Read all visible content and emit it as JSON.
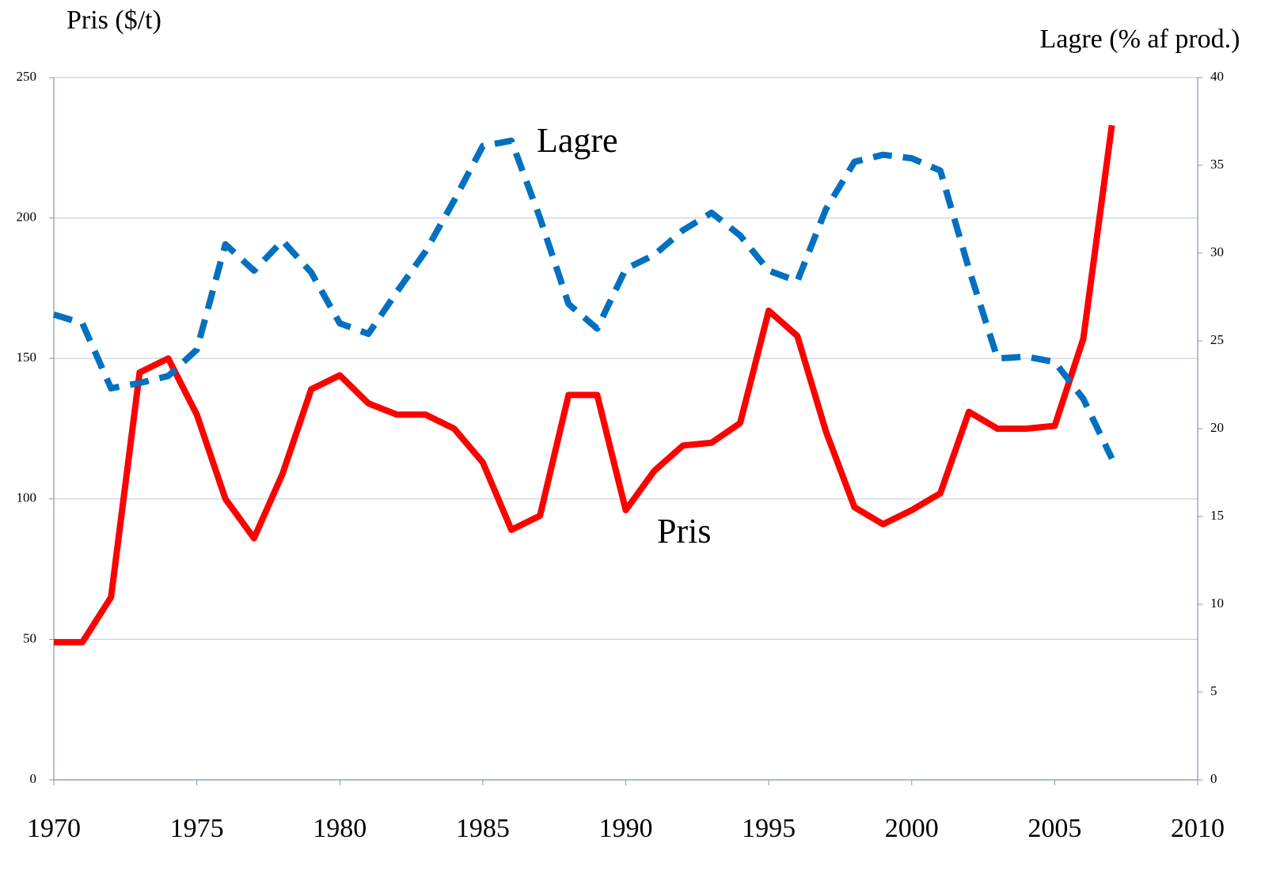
{
  "chart_data": {
    "type": "line",
    "ylabel": "Pris ($/t)",
    "y2label": "Lagre (% af prod.)",
    "annotations": [
      "Lagre",
      "Pris"
    ],
    "x": [
      1970,
      1971,
      1972,
      1973,
      1974,
      1975,
      1976,
      1977,
      1978,
      1979,
      1980,
      1981,
      1982,
      1983,
      1984,
      1985,
      1986,
      1987,
      1988,
      1989,
      1990,
      1991,
      1992,
      1993,
      1994,
      1995,
      1996,
      1997,
      1998,
      1999,
      2000,
      2001,
      2002,
      2003,
      2004,
      2005,
      2006,
      2007
    ],
    "series": [
      {
        "name": "Pris",
        "color": "#ff0000",
        "dashed": false,
        "values": [
          49,
          49,
          65,
          145,
          150,
          130,
          100,
          86,
          109,
          139,
          144,
          134,
          130,
          130,
          125,
          113,
          89,
          94,
          137,
          137,
          96,
          110,
          119,
          120,
          127,
          167,
          158,
          124,
          97,
          91,
          96,
          102,
          131,
          125,
          125,
          126,
          157,
          233
        ]
      },
      {
        "name": "Lagre",
        "color": "#0070c0",
        "dashed": true,
        "axis": "y2",
        "values": [
          26.5,
          26,
          22.3,
          22.6,
          23,
          24.5,
          30.5,
          29,
          30.7,
          28.9,
          26,
          25.4,
          27.8,
          30.1,
          33,
          36.1,
          36.4,
          32,
          27.1,
          25.7,
          29.1,
          29.9,
          31.3,
          32.3,
          31,
          29,
          28.4,
          32.5,
          35.2,
          35.6,
          35.4,
          34.7,
          29.1,
          24,
          24.1,
          23.8,
          21.7,
          18.3
        ]
      }
    ],
    "xlim": [
      1970,
      2010
    ],
    "xticks": [
      1970,
      1975,
      1980,
      1985,
      1990,
      1995,
      2000,
      2005,
      2010
    ],
    "ylim": [
      0,
      250
    ],
    "yticks": [
      0,
      50,
      100,
      150,
      200,
      250
    ],
    "y2lim": [
      0,
      40
    ],
    "y2ticks": [
      0,
      5,
      10,
      15,
      20,
      25,
      30,
      35,
      40
    ],
    "grid": true
  }
}
